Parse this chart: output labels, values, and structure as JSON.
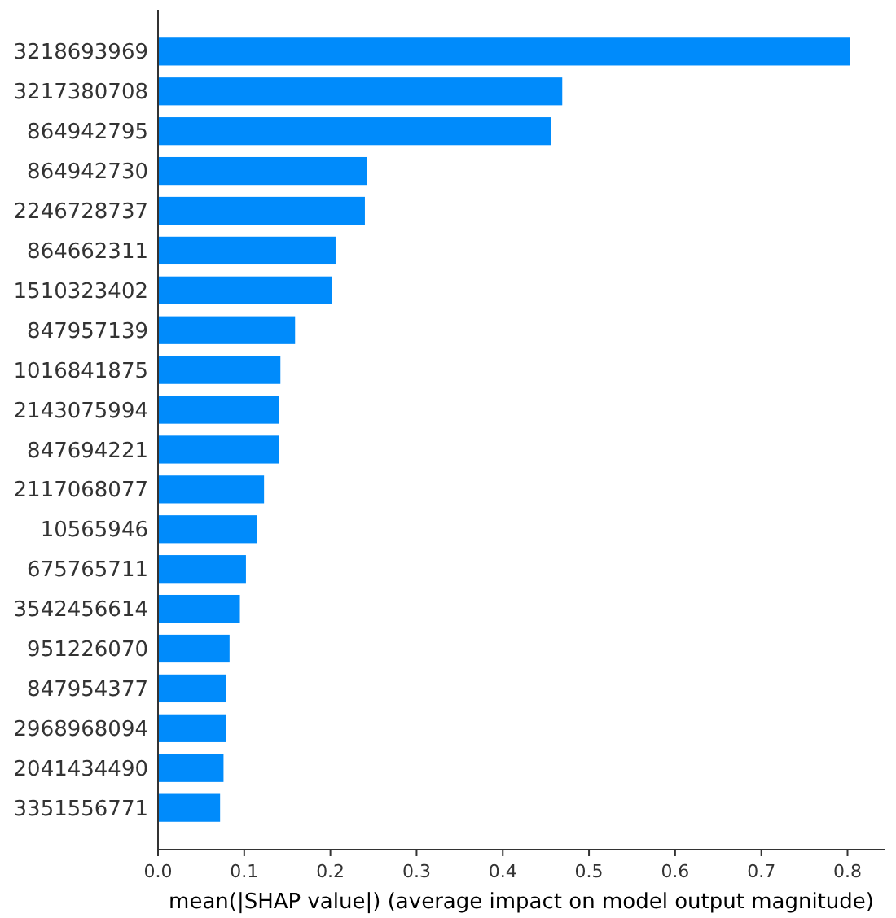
{
  "chart_data": {
    "type": "bar",
    "orientation": "horizontal",
    "xlabel": "mean(|SHAP value|) (average impact on model output magnitude)",
    "categories": [
      "3218693969",
      "3217380708",
      "864942795",
      "864942730",
      "2246728737",
      "864662311",
      "1510323402",
      "847957139",
      "1016841875",
      "2143075994",
      "847694221",
      "2117068077",
      "10565946",
      "675765711",
      "3542456614",
      "951226070",
      "847954377",
      "2968968094",
      "2041434490",
      "3351556771"
    ],
    "values": [
      0.803,
      0.469,
      0.456,
      0.242,
      0.24,
      0.206,
      0.202,
      0.159,
      0.142,
      0.14,
      0.14,
      0.123,
      0.115,
      0.102,
      0.095,
      0.083,
      0.079,
      0.079,
      0.076,
      0.072
    ],
    "color": "#008bfb",
    "xlim": [
      0,
      0.843
    ],
    "xticks": [
      {
        "value": 0,
        "label": "0.0"
      },
      {
        "value": 0.1,
        "label": "0.1"
      },
      {
        "value": 0.2,
        "label": "0.2"
      },
      {
        "value": 0.3,
        "label": "0.3"
      },
      {
        "value": 0.4,
        "label": "0.4"
      },
      {
        "value": 0.5,
        "label": "0.5"
      },
      {
        "value": 0.6,
        "label": "0.6"
      },
      {
        "value": 0.7,
        "label": "0.7"
      },
      {
        "value": 0.8,
        "label": "0.8"
      }
    ],
    "grid": false
  }
}
